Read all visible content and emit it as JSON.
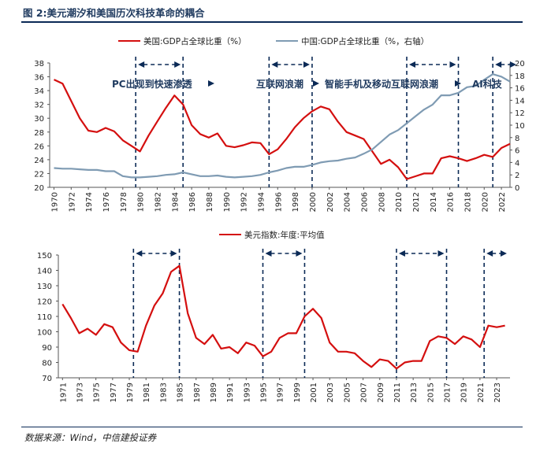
{
  "figure_title": "图 2:美元潮汐和美国历次科技革命的耦合",
  "source": "数据来源：Wind，中信建投证券",
  "colors": {
    "us": "#d40f0f",
    "cn": "#7f9bb3",
    "dxy": "#d40f0f",
    "dash": "#0b2a56",
    "text": "#1f3a5f"
  },
  "chart_data": [
    {
      "type": "line",
      "title": "",
      "legend": [
        "美国:GDP占全球比重（%）",
        "中国:GDP占全球比重（%，右轴）"
      ],
      "left_axis": {
        "ylim": [
          20,
          38
        ],
        "ticks": [
          20,
          22,
          24,
          26,
          28,
          30,
          32,
          34,
          36,
          38
        ]
      },
      "right_axis": {
        "ylim": [
          0,
          20
        ],
        "ticks": [
          0,
          2,
          4,
          6,
          8,
          10,
          12,
          14,
          16,
          18,
          20
        ]
      },
      "x_ticks": [
        "1970",
        "1972",
        "1974",
        "1976",
        "1978",
        "1980",
        "1982",
        "1984",
        "1986",
        "1988",
        "1990",
        "1992",
        "1994",
        "1996",
        "1998",
        "2000",
        "2002",
        "2004",
        "2006",
        "2008",
        "2010",
        "2012",
        "2014",
        "2016",
        "2018",
        "2020",
        "2022"
      ],
      "series": [
        {
          "name": "美国:GDP占全球比重（%）",
          "axis": "left",
          "x": [
            1970,
            1971,
            1972,
            1973,
            1974,
            1975,
            1976,
            1977,
            1978,
            1979,
            1980,
            1981,
            1982,
            1983,
            1984,
            1985,
            1986,
            1987,
            1988,
            1989,
            1990,
            1991,
            1992,
            1993,
            1994,
            1995,
            1996,
            1997,
            1998,
            1999,
            2000,
            2001,
            2002,
            2003,
            2004,
            2005,
            2006,
            2007,
            2008,
            2009,
            2010,
            2011,
            2012,
            2013,
            2014,
            2015,
            2016,
            2017,
            2018,
            2019,
            2020,
            2021,
            2022,
            2023
          ],
          "values": [
            35.6,
            35.0,
            32.5,
            30.0,
            28.2,
            28.0,
            28.6,
            28.1,
            26.8,
            26.0,
            25.2,
            27.5,
            29.5,
            31.5,
            33.3,
            32.0,
            29.0,
            27.7,
            27.2,
            27.8,
            26.0,
            25.8,
            26.1,
            26.5,
            26.4,
            24.8,
            25.5,
            27.0,
            28.7,
            30.0,
            31.0,
            31.7,
            31.3,
            29.5,
            28.0,
            27.5,
            27.0,
            25.2,
            23.4,
            24.0,
            22.9,
            21.2,
            21.6,
            22.0,
            22.0,
            24.2,
            24.5,
            24.2,
            23.8,
            24.2,
            24.7,
            24.4,
            25.7,
            26.3
          ]
        },
        {
          "name": "中国:GDP占全球比重（%，右轴）",
          "axis": "right",
          "x": [
            1970,
            1971,
            1972,
            1973,
            1974,
            1975,
            1976,
            1977,
            1978,
            1979,
            1980,
            1981,
            1982,
            1983,
            1984,
            1985,
            1986,
            1987,
            1988,
            1989,
            1990,
            1991,
            1992,
            1993,
            1994,
            1995,
            1996,
            1997,
            1998,
            1999,
            2000,
            2001,
            2002,
            2003,
            2004,
            2005,
            2006,
            2007,
            2008,
            2009,
            2010,
            2011,
            2012,
            2013,
            2014,
            2015,
            2016,
            2017,
            2018,
            2019,
            2020,
            2021,
            2022,
            2023
          ],
          "values": [
            3.1,
            3.0,
            3.0,
            2.9,
            2.8,
            2.8,
            2.6,
            2.6,
            1.8,
            1.6,
            1.6,
            1.7,
            1.8,
            2.0,
            2.1,
            2.4,
            2.1,
            1.8,
            1.8,
            1.9,
            1.7,
            1.6,
            1.7,
            1.8,
            2.0,
            2.4,
            2.7,
            3.1,
            3.3,
            3.3,
            3.6,
            4.0,
            4.2,
            4.3,
            4.6,
            4.8,
            5.4,
            6.1,
            7.3,
            8.5,
            9.2,
            10.3,
            11.4,
            12.5,
            13.3,
            14.8,
            14.8,
            15.2,
            16.1,
            16.3,
            17.3,
            18.2,
            17.8,
            17.0
          ]
        }
      ],
      "dashed_lines": [
        1980,
        1985.5,
        1995.5,
        2000.5,
        2011.5,
        2017.5,
        2021.5
      ],
      "eras": [
        {
          "label": "PC出现到快速渗透",
          "x1": 1980,
          "x2": 1985.5
        },
        {
          "label": "互联网浪潮",
          "x1": 1995.5,
          "x2": 2000.5
        },
        {
          "label": "智能手机及移动互联网浪潮",
          "x1": 2011.5,
          "x2": 2017.5
        },
        {
          "label": "AI科技",
          "x1": 2021.5,
          "x2": 2024.5
        }
      ]
    },
    {
      "type": "line",
      "title": "",
      "legend": [
        "美元指数:年度:平均值"
      ],
      "ylim": [
        70,
        150
      ],
      "y_ticks": [
        70,
        80,
        90,
        100,
        110,
        120,
        130,
        140,
        150
      ],
      "x_ticks": [
        "1971",
        "1973",
        "1975",
        "1977",
        "1979",
        "1981",
        "1983",
        "1985",
        "1987",
        "1989",
        "1991",
        "1993",
        "1995",
        "1997",
        "1999",
        "2001",
        "2003",
        "2005",
        "2007",
        "2009",
        "2011",
        "2013",
        "2015",
        "2017",
        "2019",
        "2021",
        "2023"
      ],
      "series": [
        {
          "name": "美元指数:年度:平均值",
          "x": [
            1971,
            1972,
            1973,
            1974,
            1975,
            1976,
            1977,
            1978,
            1979,
            1980,
            1981,
            1982,
            1983,
            1984,
            1985,
            1986,
            1987,
            1988,
            1989,
            1990,
            1991,
            1992,
            1993,
            1994,
            1995,
            1996,
            1997,
            1998,
            1999,
            2000,
            2001,
            2002,
            2003,
            2004,
            2005,
            2006,
            2007,
            2008,
            2009,
            2010,
            2011,
            2012,
            2013,
            2014,
            2015,
            2016,
            2017,
            2018,
            2019,
            2020,
            2021,
            2022,
            2023,
            2024
          ],
          "values": [
            118,
            109,
            99,
            102,
            98,
            105,
            103,
            93,
            88,
            87,
            104,
            117,
            125,
            139,
            143,
            112,
            96,
            92,
            98,
            89,
            90,
            86,
            93,
            91,
            84,
            87,
            96,
            99,
            99,
            110,
            115,
            109,
            93,
            87,
            87,
            86,
            81,
            77,
            82,
            81,
            76,
            80,
            81,
            81,
            94,
            97,
            96,
            92,
            97,
            95,
            90,
            104,
            103,
            104
          ]
        }
      ],
      "dashed_lines": [
        1979.5,
        1985,
        1995,
        2000,
        2011,
        2017,
        2021.5
      ],
      "arrows": [
        [
          1979.5,
          1985
        ],
        [
          1995,
          2000
        ],
        [
          2011,
          2017
        ],
        [
          2021.5,
          2024.5
        ]
      ]
    }
  ]
}
